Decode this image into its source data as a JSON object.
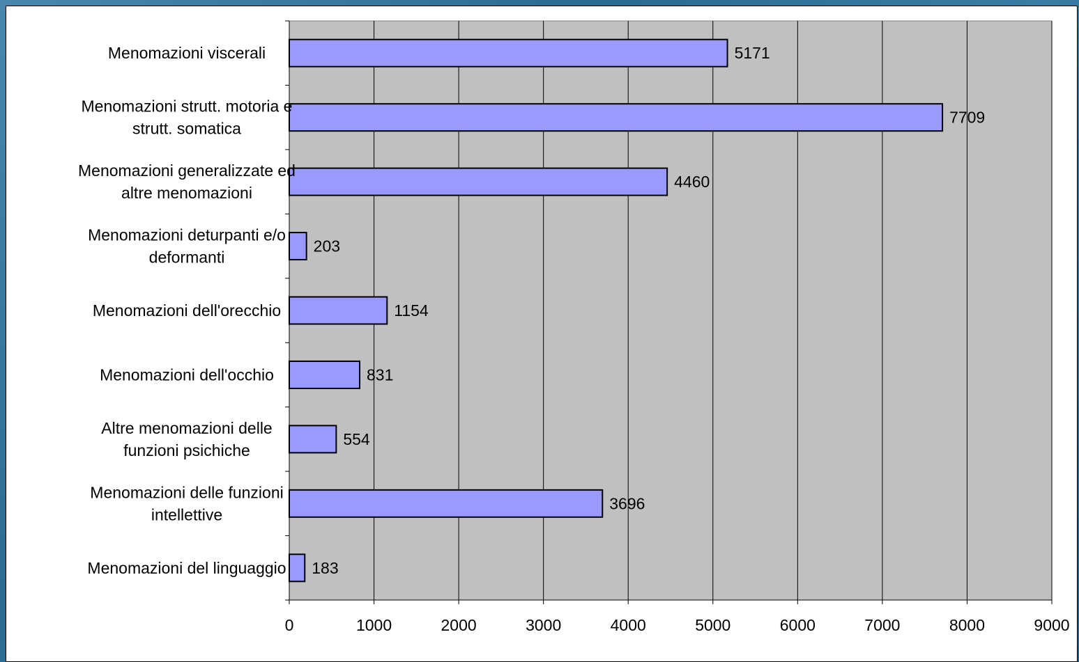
{
  "chart_data": {
    "type": "bar",
    "orientation": "horizontal",
    "categories": [
      [
        "Menomazioni viscerali"
      ],
      [
        "Menomazioni strutt. motoria e",
        "strutt. somatica"
      ],
      [
        "Menomazioni generalizzate ed",
        "altre menomazioni"
      ],
      [
        "Menomazioni deturpanti e/o",
        "deformanti"
      ],
      [
        "Menomazioni dell'orecchio"
      ],
      [
        "Menomazioni dell'occhio"
      ],
      [
        "Altre menomazioni delle",
        "funzioni psichiche"
      ],
      [
        "Menomazioni delle funzioni",
        "intellettive"
      ],
      [
        "Menomazioni del linguaggio"
      ]
    ],
    "values": [
      5171,
      7709,
      4460,
      203,
      1154,
      831,
      554,
      3696,
      183
    ],
    "data_labels": [
      "5171",
      "7709",
      "4460",
      "203",
      "1154",
      "831",
      "554",
      "3696",
      "183"
    ],
    "xlim": [
      0,
      9000
    ],
    "x_ticks": [
      0,
      1000,
      2000,
      3000,
      4000,
      5000,
      6000,
      7000,
      8000,
      9000
    ],
    "x_tick_labels": [
      "0",
      "1000",
      "2000",
      "3000",
      "4000",
      "5000",
      "6000",
      "7000",
      "8000",
      "9000"
    ],
    "grid": "vertical",
    "legend": "none",
    "colors": {
      "bar_fill": "#9999ff",
      "bar_stroke": "#000000",
      "plot_background": "#c0c0c0",
      "grid": "#000000"
    }
  }
}
